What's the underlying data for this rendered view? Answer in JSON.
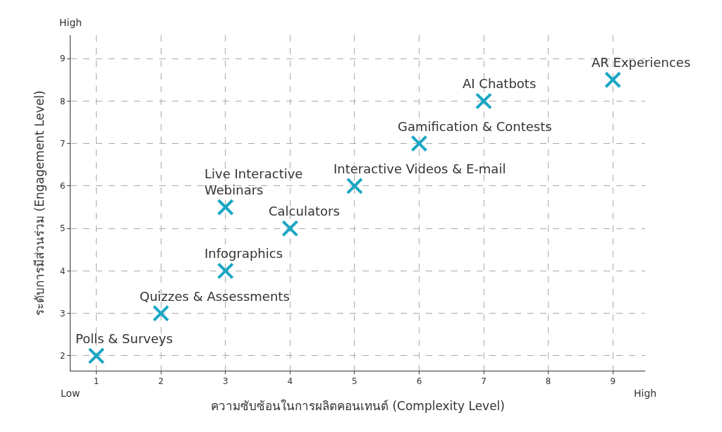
{
  "chart_data": {
    "type": "scatter",
    "xlabel": "ความซับซ้อนในการผลิตคอนเทนต์ (Complexity Level)",
    "ylabel": "ระดับการมีส่วนร่วม (Engagement Level)",
    "x": [
      1,
      2,
      3,
      3,
      4,
      5,
      6,
      7,
      9
    ],
    "series": [
      {
        "color": "#1ba6c4",
        "values": [
          2,
          3,
          4,
          5.5,
          5,
          6,
          7,
          8,
          8.5
        ]
      }
    ],
    "xlim": [
      0.6,
      9.5
    ],
    "xticks": [
      1,
      2,
      3,
      4,
      5,
      6,
      7,
      8,
      9
    ],
    "ylim": [
      1.65,
      9.55
    ],
    "yticks": [
      2,
      3,
      4,
      5,
      6,
      7,
      8,
      9
    ],
    "grid": true,
    "marker": "cross",
    "annotations": [
      {
        "text": "Polls & Surveys",
        "x": 1,
        "y": 2
      },
      {
        "text": "Quizzes & Assessments",
        "x": 2,
        "y": 3
      },
      {
        "text": "Infographics",
        "x": 3,
        "y": 4
      },
      {
        "text": "Live Interactive\nWebinars",
        "x": 3,
        "y": 5.5
      },
      {
        "text": "Calculators",
        "x": 4,
        "y": 5
      },
      {
        "text": "Interactive Videos & E-mail",
        "x": 5,
        "y": 6
      },
      {
        "text": "Gamification & Contests",
        "x": 6,
        "y": 7
      },
      {
        "text": "AI Chatbots",
        "x": 7,
        "y": 8
      },
      {
        "text": "AR Experiences",
        "x": 9,
        "y": 8.5
      },
      "High",
      "Low",
      "High"
    ]
  }
}
